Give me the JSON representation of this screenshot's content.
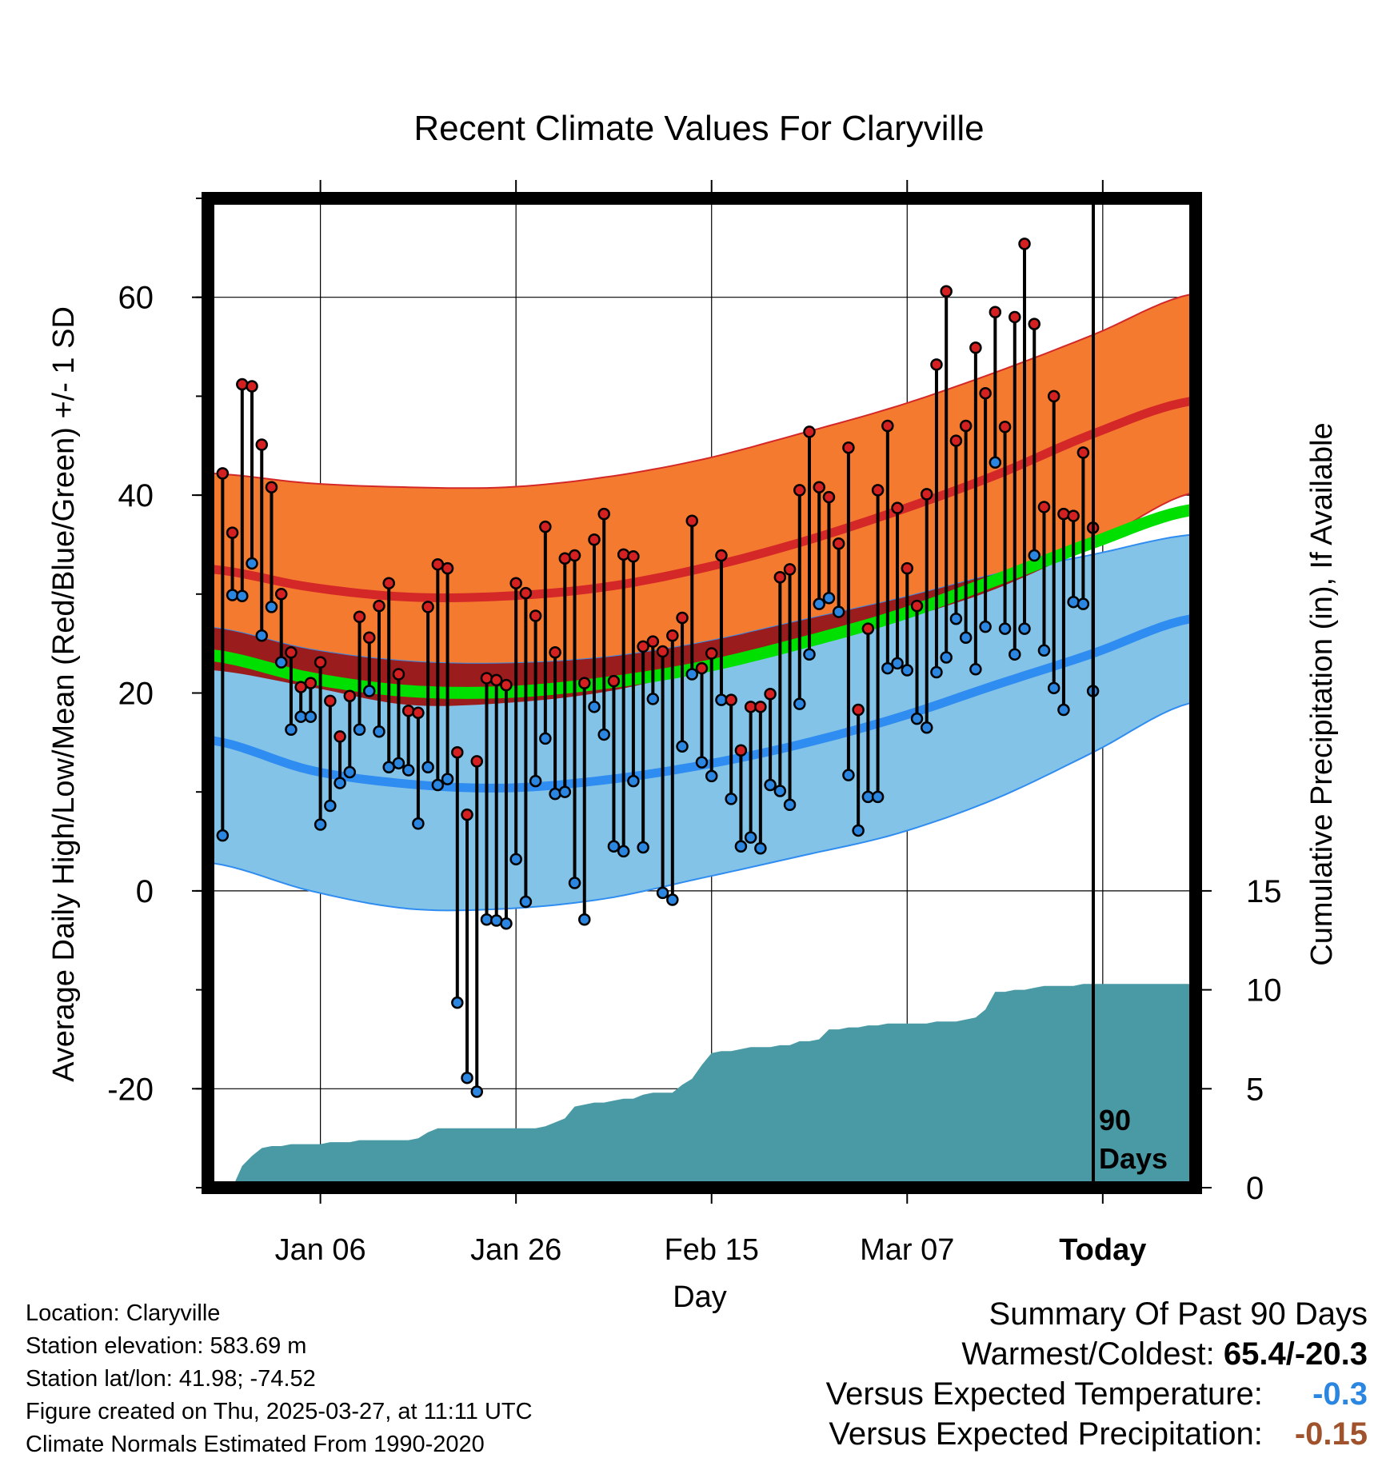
{
  "chart_data": {
    "type": "line",
    "title": "Recent Climate Values For Claryville",
    "xlabel": "Day",
    "ylabel": "Average Daily High/Low/Mean (Red/Blue/Green) +/- 1 SD",
    "y2label": "Cumulative Precipitation (in), If Available",
    "ylim": [
      -30,
      70
    ],
    "y2lim": [
      0,
      50
    ],
    "xlim": [
      -0.5,
      100.5
    ],
    "y_ticks": [
      "-20",
      "0",
      "20",
      "40",
      "60"
    ],
    "y2_ticks": [
      "0",
      "5",
      "10",
      "15"
    ],
    "x_ticks": [
      {
        "label": "Jan 06",
        "day": 11
      },
      {
        "label": "Jan 26",
        "day": 31
      },
      {
        "label": "Feb 15",
        "day": 51
      },
      {
        "label": "Mar 07",
        "day": 71
      },
      {
        "label": "Today",
        "day": 91
      }
    ],
    "today_marker": {
      "day": 91,
      "label_line1": "90",
      "label_line2": "Days"
    },
    "normals": {
      "days": [
        0,
        10,
        20,
        30,
        40,
        50,
        60,
        70,
        80,
        90,
        100
      ],
      "high_mean": [
        32.5,
        30.7,
        29.7,
        29.8,
        30.7,
        32.6,
        35.2,
        38.4,
        42.0,
        46.2,
        49.5
      ],
      "high_upper": [
        42.2,
        41.2,
        40.8,
        40.8,
        41.8,
        43.6,
        46.2,
        49.0,
        52.4,
        56.2,
        60.3
      ],
      "high_lower": [
        22.3,
        20.6,
        18.8,
        19.0,
        20.1,
        22.3,
        24.6,
        27.3,
        30.5,
        35.0,
        40.2
      ],
      "low_mean": [
        15.2,
        12.2,
        10.8,
        10.4,
        11.2,
        12.7,
        14.8,
        17.5,
        20.8,
        24.0,
        27.5
      ],
      "low_upper": [
        26.6,
        24.4,
        23.2,
        23.0,
        23.6,
        25.1,
        27.3,
        29.5,
        32.0,
        34.0,
        36.0
      ],
      "low_lower": [
        2.8,
        0.0,
        -1.8,
        -1.8,
        -0.8,
        1.3,
        3.5,
        5.8,
        9.3,
        14.0,
        19.0
      ],
      "mean": [
        23.8,
        21.5,
        20.2,
        20.1,
        21.0,
        22.6,
        25.0,
        27.8,
        31.4,
        35.2,
        38.5
      ]
    },
    "series": [
      {
        "name": "Daily High",
        "color": "#d42020",
        "values": [
          42.2,
          36.2,
          51.2,
          51.0,
          45.1,
          40.8,
          30.0,
          24.1,
          20.6,
          21.0,
          23.1,
          19.2,
          15.6,
          19.7,
          27.7,
          25.6,
          28.8,
          31.1,
          21.9,
          18.2,
          18.0,
          28.7,
          33.0,
          32.6,
          14.0,
          7.7,
          13.1,
          21.5,
          21.3,
          20.8,
          31.1,
          30.1,
          27.8,
          36.8,
          24.1,
          33.6,
          33.9,
          21.0,
          35.5,
          38.1,
          21.2,
          34.0,
          33.8,
          24.7,
          25.2,
          24.2,
          25.8,
          27.6,
          37.4,
          22.5,
          24.0,
          33.9,
          19.3,
          14.2,
          18.6,
          18.6,
          19.9,
          31.7,
          32.5,
          40.5,
          46.4,
          40.8,
          39.8,
          35.1,
          44.8,
          18.3,
          26.5,
          40.5,
          47.0,
          38.7,
          32.6,
          28.8,
          40.1,
          53.2,
          60.6,
          45.5,
          47.0,
          54.9,
          50.3,
          58.5,
          46.9,
          58.0,
          65.4,
          57.3,
          38.8,
          50.0,
          38.1,
          37.9,
          44.3,
          36.7
        ]
      },
      {
        "name": "Daily Low",
        "color": "#2a86e0",
        "values": [
          5.6,
          29.9,
          29.8,
          33.1,
          25.8,
          28.7,
          23.1,
          16.3,
          17.6,
          17.6,
          6.7,
          8.6,
          10.9,
          12.0,
          16.3,
          20.2,
          16.1,
          12.5,
          12.9,
          12.2,
          6.8,
          12.5,
          10.7,
          11.3,
          -11.3,
          -18.9,
          -20.3,
          -2.9,
          -3.0,
          -3.3,
          3.2,
          -1.1,
          11.1,
          15.4,
          9.8,
          10.0,
          0.8,
          -2.9,
          18.6,
          15.8,
          4.5,
          4.0,
          11.1,
          4.4,
          19.4,
          -0.2,
          -0.9,
          14.6,
          21.9,
          13.0,
          11.6,
          19.3,
          9.3,
          4.5,
          5.4,
          4.3,
          10.7,
          10.1,
          8.7,
          18.9,
          23.9,
          29.0,
          29.6,
          28.2,
          11.7,
          6.1,
          9.5,
          9.5,
          22.5,
          23.0,
          22.3,
          17.4,
          16.5,
          22.1,
          23.6,
          27.5,
          25.6,
          22.4,
          26.7,
          43.3,
          26.5,
          23.9,
          26.5,
          33.9,
          24.3,
          20.5,
          18.3,
          29.2,
          29.0,
          20.2
        ]
      }
    ],
    "precipitation": {
      "name": "Cumulative Precipitation",
      "color": "#4a9aa5",
      "days": [
        0,
        1,
        2,
        3,
        4,
        5,
        6,
        7,
        8,
        9,
        10,
        11,
        12,
        13,
        14,
        15,
        16,
        17,
        18,
        19,
        20,
        21,
        22,
        23,
        24,
        25,
        26,
        27,
        28,
        29,
        30,
        31,
        32,
        33,
        34,
        35,
        36,
        37,
        38,
        39,
        40,
        41,
        42,
        43,
        44,
        45,
        46,
        47,
        48,
        49,
        50,
        51,
        52,
        53,
        54,
        55,
        56,
        57,
        58,
        59,
        60,
        61,
        62,
        63,
        64,
        65,
        66,
        67,
        68,
        69,
        70,
        71,
        72,
        73,
        74,
        75,
        76,
        77,
        78,
        79,
        80,
        81,
        82,
        83,
        84,
        85,
        86,
        87,
        88,
        89,
        90,
        100
      ],
      "values": [
        0.0,
        0.0,
        0.0,
        1.1,
        1.6,
        2.0,
        2.1,
        2.1,
        2.2,
        2.2,
        2.2,
        2.2,
        2.3,
        2.3,
        2.3,
        2.4,
        2.4,
        2.4,
        2.4,
        2.4,
        2.4,
        2.5,
        2.8,
        3.0,
        3.0,
        3.0,
        3.0,
        3.0,
        3.0,
        3.0,
        3.0,
        3.0,
        3.0,
        3.0,
        3.1,
        3.3,
        3.5,
        4.1,
        4.2,
        4.3,
        4.3,
        4.4,
        4.5,
        4.5,
        4.7,
        4.8,
        4.8,
        4.8,
        5.2,
        5.5,
        6.2,
        6.8,
        6.9,
        6.9,
        7.0,
        7.1,
        7.1,
        7.1,
        7.2,
        7.2,
        7.4,
        7.4,
        7.5,
        8.0,
        8.0,
        8.1,
        8.1,
        8.2,
        8.2,
        8.3,
        8.3,
        8.3,
        8.3,
        8.3,
        8.4,
        8.4,
        8.4,
        8.5,
        8.6,
        9.0,
        9.9,
        9.9,
        10.0,
        10.0,
        10.1,
        10.2,
        10.2,
        10.2,
        10.2,
        10.3,
        10.3,
        10.3
      ]
    }
  },
  "footer_left": {
    "location": "Location: Claryville",
    "elevation": "Station elevation: 583.69 m",
    "latlon": "Station lat/lon: 41.98; -74.52",
    "created": "Figure created on Thu, 2025-03-27, at 11:11 UTC",
    "normals_note": "Climate Normals Estimated From 1990-2020"
  },
  "summary": {
    "heading": "Summary Of Past 90 Days",
    "warmest_label": "Warmest/Coldest:",
    "warmest_value": "65.4/-20.3",
    "temp_label": "Versus Expected Temperature:",
    "temp_value": "-0.3",
    "temp_color": "#2a86e0",
    "precip_label": "Versus Expected Precipitation:",
    "precip_value": "-0.15",
    "precip_color": "#a0522d"
  },
  "colors": {
    "high_band": "#f47a30",
    "high_line": "#d42828",
    "low_band": "#83c3e8",
    "low_line": "#2f8cf0",
    "overlap_band": "#9b1c1c",
    "mean_line": "#00e000",
    "precip_fill": "#4a9aa5"
  }
}
